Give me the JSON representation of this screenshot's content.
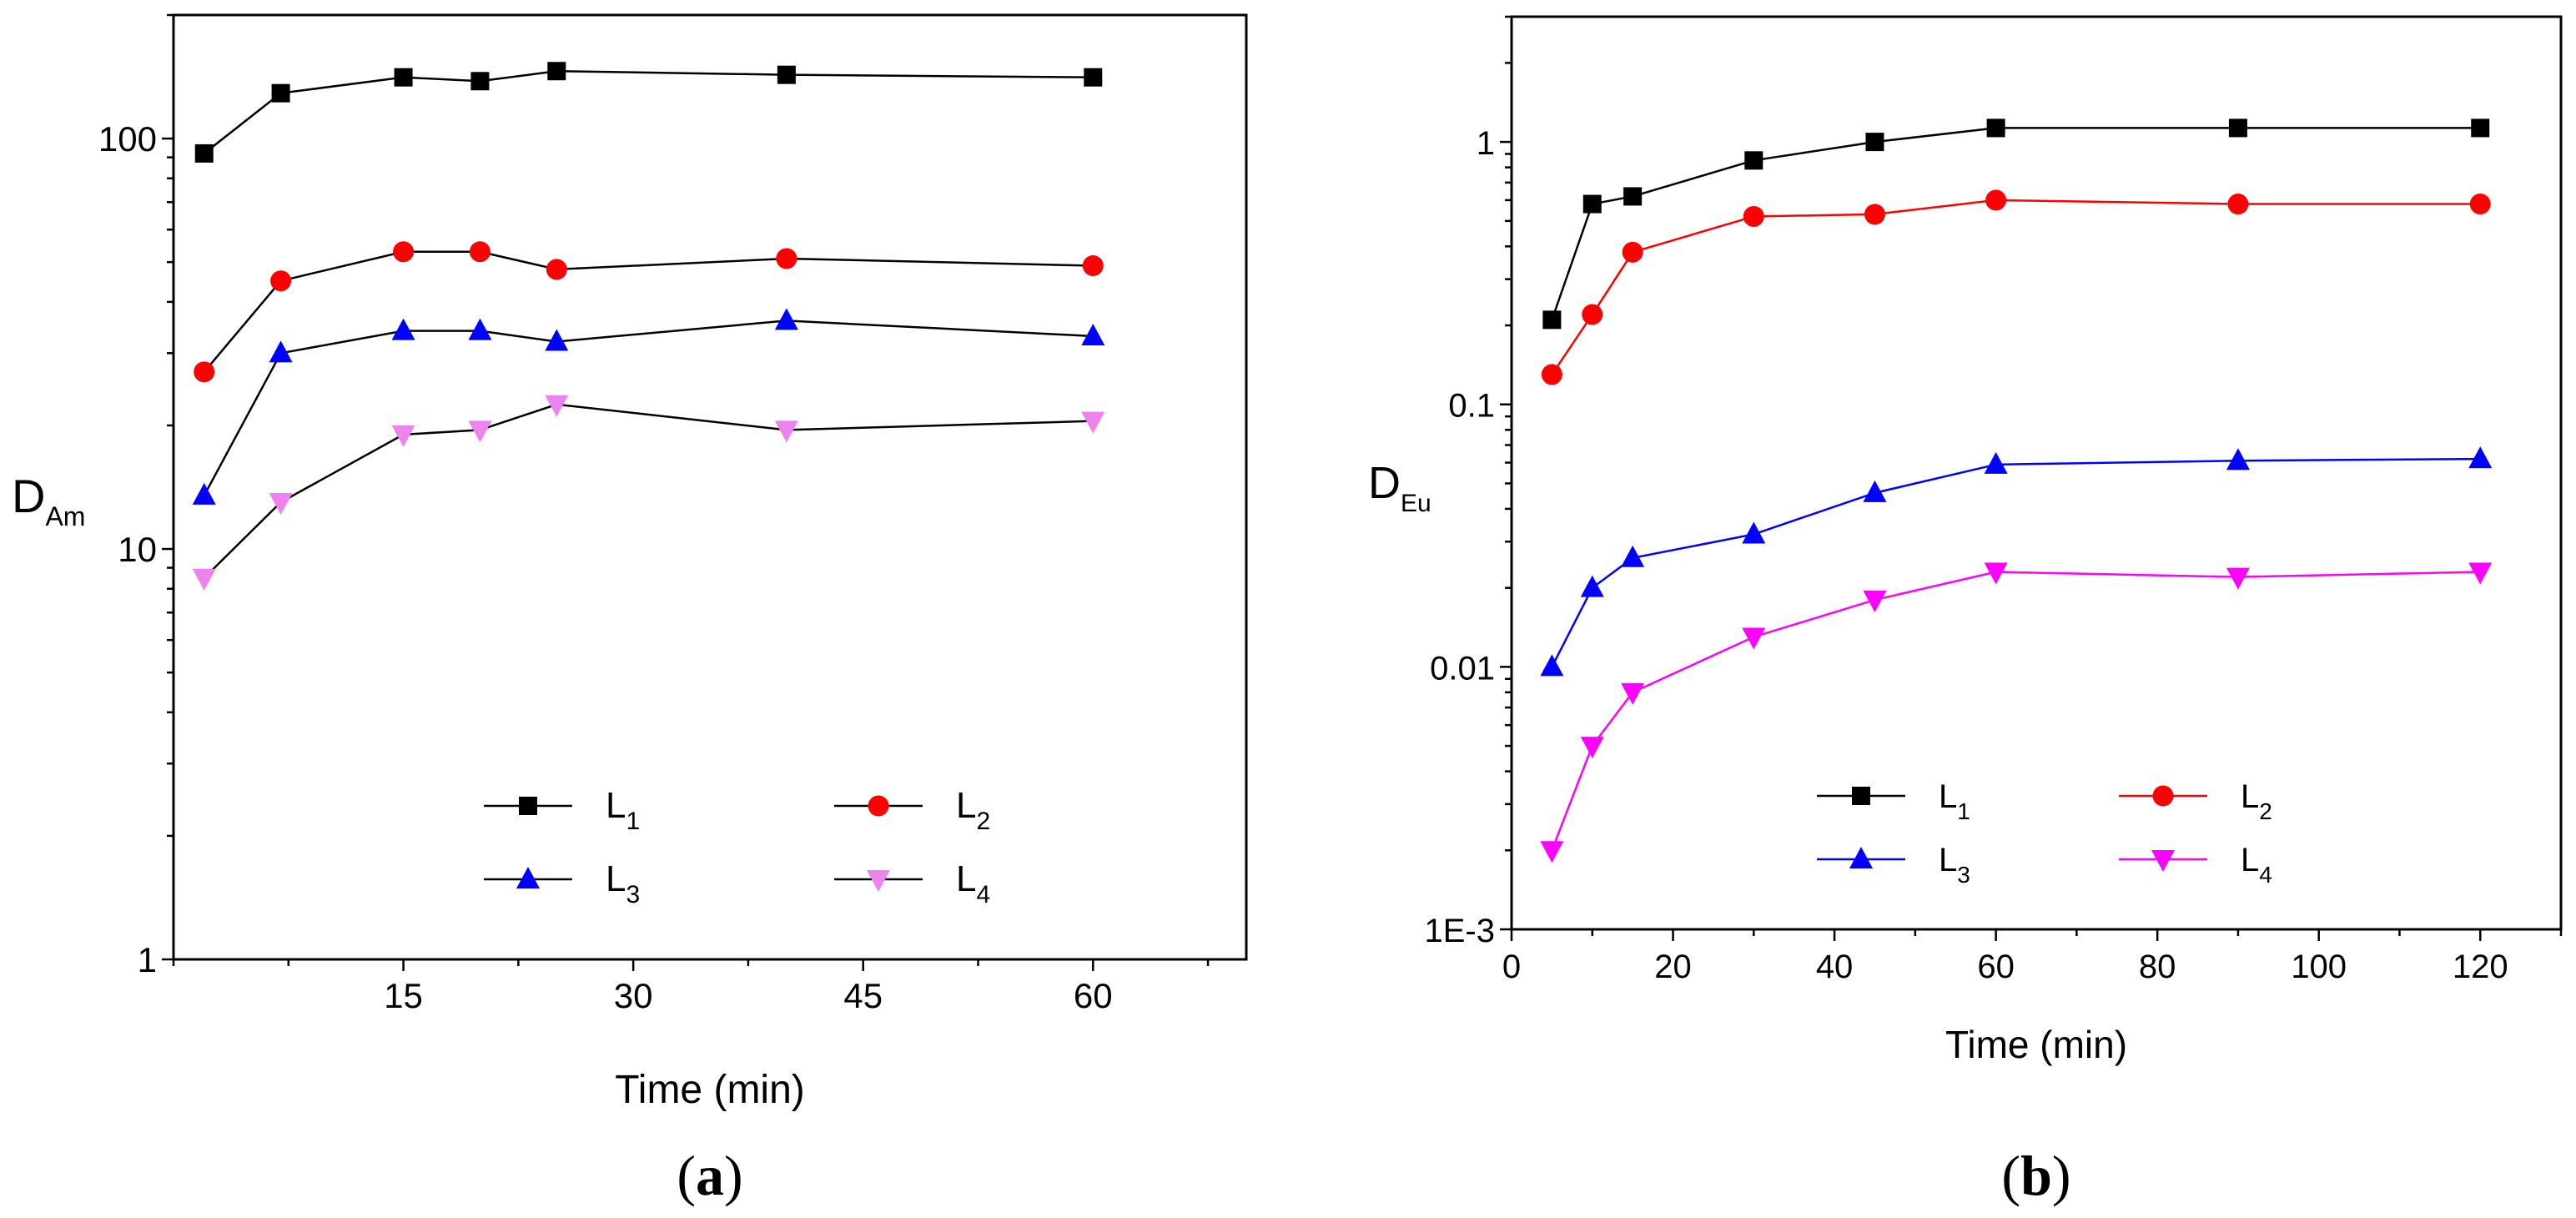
{
  "chart_data": [
    {
      "type": "line",
      "panel_label": "(a)",
      "panel_letter": "a",
      "xlabel": "Time (min)",
      "ylabel": "D",
      "ylabel_sub": "Am",
      "xlim": [
        0,
        70
      ],
      "ylim": [
        1,
        200
      ],
      "yscale": "log",
      "xticks": [
        15,
        30,
        45,
        60
      ],
      "xtick_labels": [
        "15",
        "30",
        "45",
        "60"
      ],
      "yticks": [
        1,
        10,
        100
      ],
      "ytick_labels": [
        "1",
        "10",
        "100"
      ],
      "grid": false,
      "legend_position": "bottom-center",
      "series": [
        {
          "name": "L",
          "sub": "1",
          "color": "#000000",
          "line_color": "#000000",
          "marker": "square",
          "x": [
            2,
            7,
            15,
            20,
            25,
            40,
            60
          ],
          "y": [
            92,
            129,
            141,
            138,
            146,
            143,
            141
          ]
        },
        {
          "name": "L",
          "sub": "2",
          "color": "#ff0000",
          "line_color": "#000000",
          "marker": "circle",
          "x": [
            2,
            7,
            15,
            20,
            25,
            40,
            60
          ],
          "y": [
            27,
            45,
            53,
            53,
            48,
            51,
            49
          ]
        },
        {
          "name": "L",
          "sub": "3",
          "color": "#0000ff",
          "line_color": "#000000",
          "marker": "triangle-up",
          "x": [
            2,
            7,
            15,
            20,
            25,
            40,
            60
          ],
          "y": [
            13.5,
            30,
            34,
            34,
            32,
            36,
            33
          ]
        },
        {
          "name": "L",
          "sub": "4",
          "color": "#ee82ee",
          "line_color": "#000000",
          "marker": "triangle-down",
          "x": [
            2,
            7,
            15,
            20,
            25,
            40,
            60
          ],
          "y": [
            8.5,
            13,
            19,
            19.5,
            22.5,
            19.5,
            20.5
          ]
        }
      ]
    },
    {
      "type": "line",
      "panel_label": "(b)",
      "panel_letter": "b",
      "xlabel": "Time (min)",
      "ylabel": "D",
      "ylabel_sub": "Eu",
      "xlim": [
        0,
        130
      ],
      "ylim": [
        0.001,
        3
      ],
      "yscale": "log",
      "xticks": [
        0,
        20,
        40,
        60,
        80,
        100,
        120
      ],
      "xtick_labels": [
        "0",
        "20",
        "40",
        "60",
        "80",
        "100",
        "120"
      ],
      "yticks": [
        0.001,
        0.01,
        0.1,
        1
      ],
      "ytick_labels": [
        "1E-3",
        "0.01",
        "0.1",
        "1"
      ],
      "grid": false,
      "legend_position": "bottom-center",
      "series": [
        {
          "name": "L",
          "sub": "1",
          "color": "#000000",
          "line_color": "#000000",
          "marker": "square",
          "x": [
            5,
            10,
            15,
            30,
            45,
            60,
            90,
            120
          ],
          "y": [
            0.21,
            0.58,
            0.62,
            0.85,
            1.0,
            1.13,
            1.13,
            1.13
          ]
        },
        {
          "name": "L",
          "sub": "2",
          "color": "#ff0000",
          "line_color": "#ff0000",
          "marker": "circle",
          "x": [
            5,
            10,
            15,
            30,
            45,
            60,
            90,
            120
          ],
          "y": [
            0.13,
            0.22,
            0.38,
            0.52,
            0.53,
            0.6,
            0.58,
            0.58
          ]
        },
        {
          "name": "L",
          "sub": "3",
          "color": "#0000ff",
          "line_color": "#0000ff",
          "marker": "triangle-up",
          "x": [
            5,
            10,
            15,
            30,
            45,
            60,
            90,
            120
          ],
          "y": [
            0.01,
            0.02,
            0.026,
            0.032,
            0.046,
            0.059,
            0.061,
            0.062
          ]
        },
        {
          "name": "L",
          "sub": "4",
          "color": "#ff00ff",
          "line_color": "#ff00ff",
          "marker": "triangle-down",
          "x": [
            5,
            10,
            15,
            30,
            45,
            60,
            90,
            120
          ],
          "y": [
            0.002,
            0.005,
            0.008,
            0.013,
            0.018,
            0.023,
            0.022,
            0.023
          ]
        }
      ]
    }
  ]
}
